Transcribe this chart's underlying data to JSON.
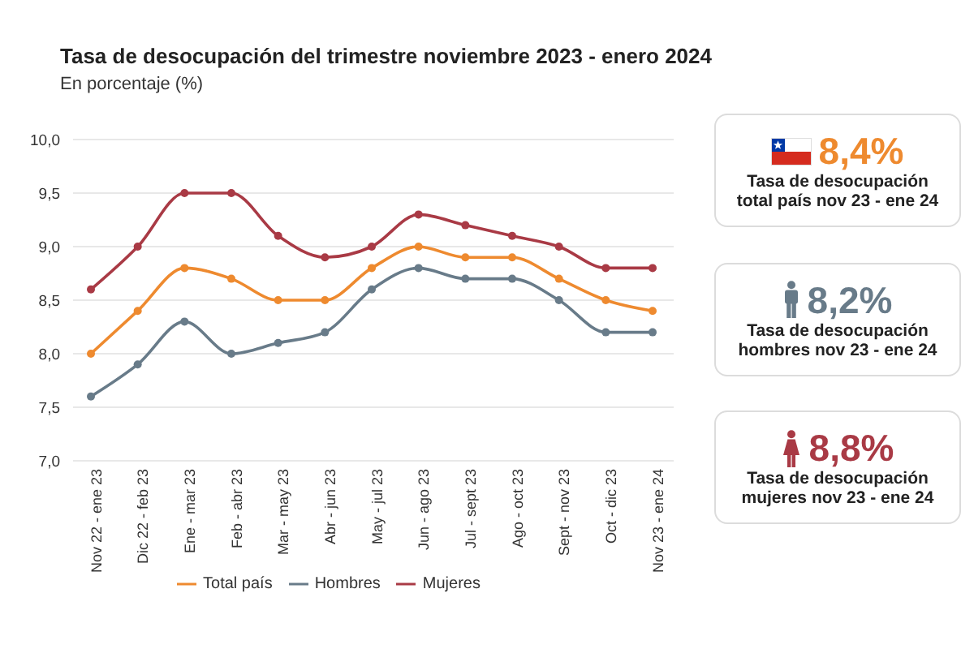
{
  "chart_data": {
    "type": "line",
    "title": "Tasa de desocupación del trimestre noviembre 2023 - enero 2024",
    "subtitle": "En porcentaje (%)",
    "categories": [
      "Nov 22 - ene 23",
      "Dic 22 - feb 23",
      "Ene - mar 23",
      "Feb - abr 23",
      "Mar - may 23",
      "Abr - jun 23",
      "May - jul 23",
      "Jun - ago 23",
      "Jul - sept 23",
      "Ago - oct 23",
      "Sept - nov 23",
      "Oct - dic 23",
      "Nov 23 - ene 24"
    ],
    "series": [
      {
        "name": "Total país",
        "color": "#ee8a2f",
        "values": [
          8.0,
          8.4,
          8.8,
          8.7,
          8.5,
          8.5,
          8.8,
          9.0,
          8.9,
          8.9,
          8.7,
          8.5,
          8.4
        ]
      },
      {
        "name": "Hombres",
        "color": "#687b89",
        "values": [
          7.6,
          7.9,
          8.3,
          8.0,
          8.1,
          8.2,
          8.6,
          8.8,
          8.7,
          8.7,
          8.5,
          8.2,
          8.2
        ]
      },
      {
        "name": "Mujeres",
        "color": "#a93a45",
        "values": [
          8.6,
          9.0,
          9.5,
          9.5,
          9.1,
          8.9,
          9.0,
          9.3,
          9.2,
          9.1,
          9.0,
          8.8,
          8.8
        ]
      }
    ],
    "ylim": [
      7,
      10
    ],
    "yticks": [
      {
        "value": 7,
        "label": "7,0"
      },
      {
        "value": 7.5,
        "label": "7,5"
      },
      {
        "value": 8,
        "label": "8,0"
      },
      {
        "value": 8.5,
        "label": "8,5"
      },
      {
        "value": 9,
        "label": "9,0"
      },
      {
        "value": 9.5,
        "label": "9,5"
      },
      {
        "value": 10,
        "label": "10,0"
      }
    ],
    "grid": "y",
    "legend": "bottom",
    "marker": "circle",
    "annotations": [
      "8,4%",
      "Tasa de desocupación total país nov 23 - ene 24",
      "8,2%",
      "Tasa de desocupación hombres nov 23 - ene 24",
      "8,8%",
      "Tasa de desocupación mujeres nov 23 - ene 24"
    ]
  }
}
